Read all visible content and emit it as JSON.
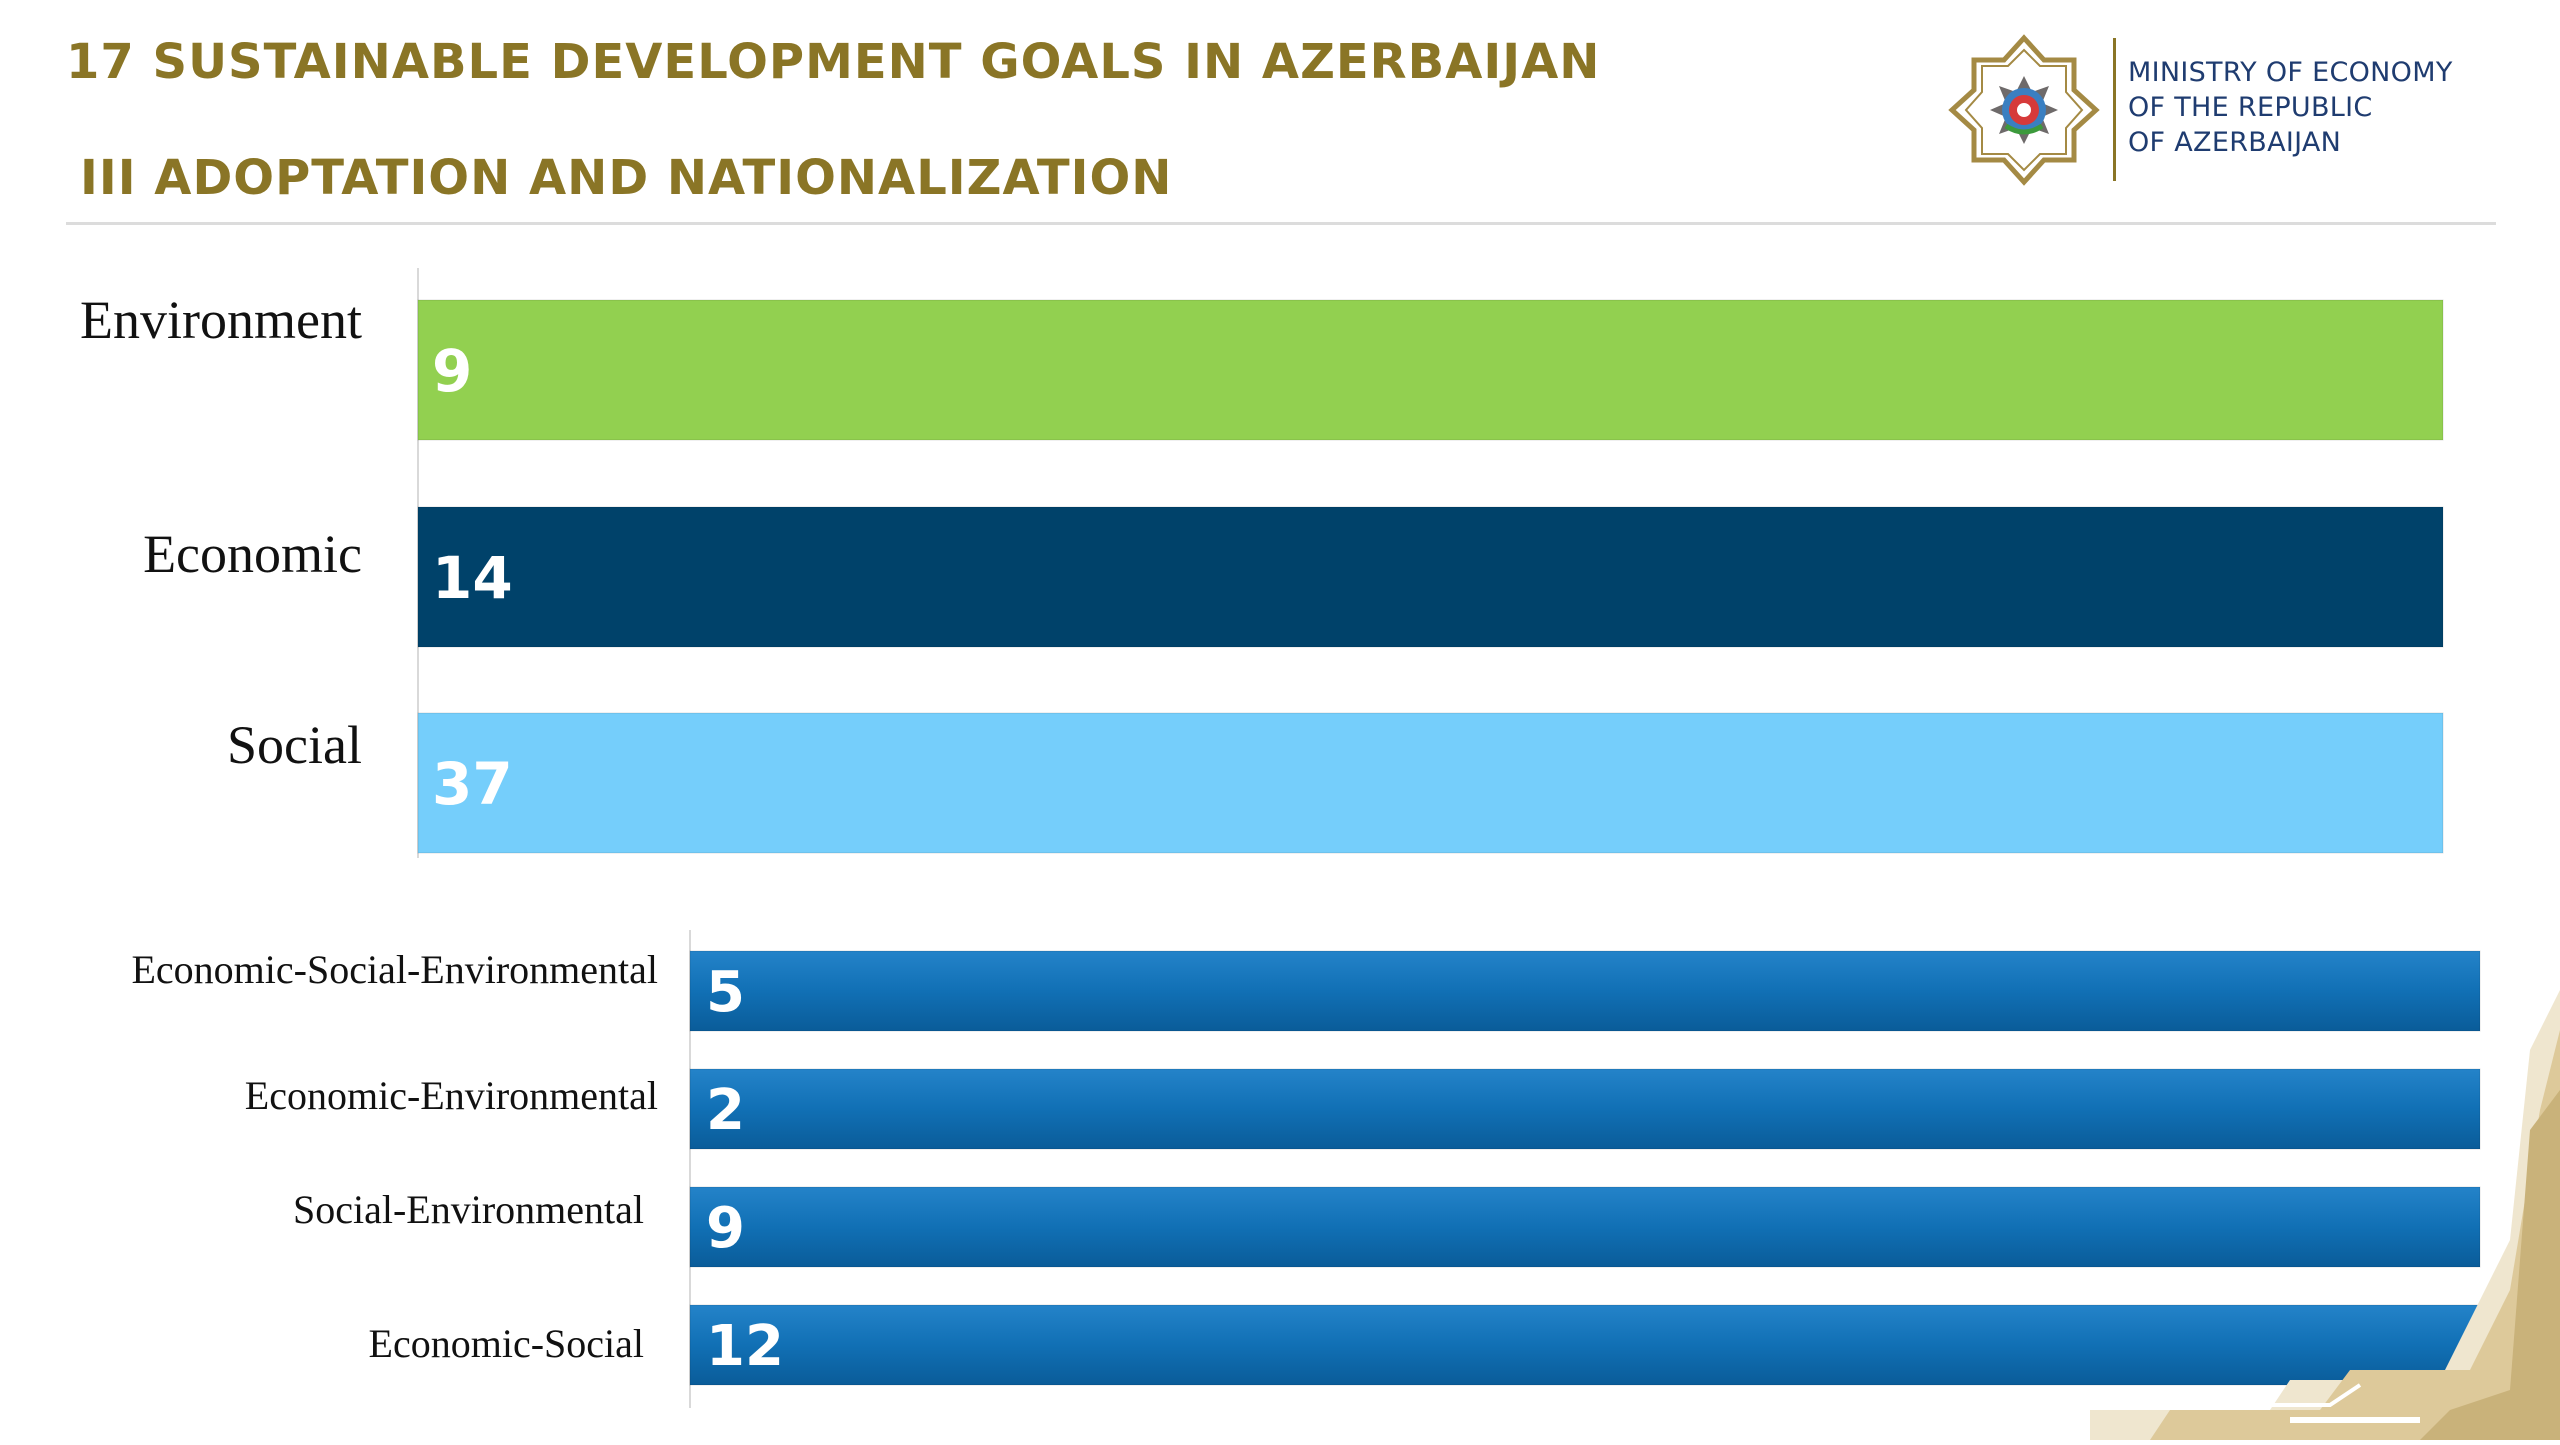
{
  "header": {
    "title": "17 SUSTAINABLE DEVELOPMENT GOALS IN AZERBAIJAN",
    "subtitle": "III ADOPTATION AND NATIONALIZATION"
  },
  "logo": {
    "line1": "MINISTRY OF ECONOMY",
    "line2": "OF THE REPUBLIC",
    "line3": "OF AZERBAIJAN",
    "icon": "state-emblem-icon",
    "text_color": "#1f3c70",
    "emblem_color": "#a48a44"
  },
  "colors": {
    "title": "#8a7526",
    "environment": "#92d050",
    "economic": "#00426a",
    "social": "#75cefb",
    "combined": "#1170b5"
  },
  "chart_data": [
    {
      "type": "bar",
      "orientation": "horizontal",
      "categories": [
        "Environment",
        "Economic",
        "Social"
      ],
      "values": [
        9,
        14,
        37
      ],
      "data_labels": [
        "9",
        "14",
        "37"
      ],
      "colors": [
        "#92d050",
        "#00426a",
        "#75cefb"
      ]
    },
    {
      "type": "bar",
      "orientation": "horizontal",
      "categories": [
        "Economic-Social-Environmental",
        "Economic-Environmental",
        "Social-Environmental",
        "Economic-Social"
      ],
      "values": [
        5,
        2,
        9,
        12
      ],
      "data_labels": [
        "5",
        "2",
        "9",
        "12"
      ],
      "colors": [
        "#1170b5",
        "#1170b5",
        "#1170b5",
        "#1170b5"
      ]
    }
  ]
}
